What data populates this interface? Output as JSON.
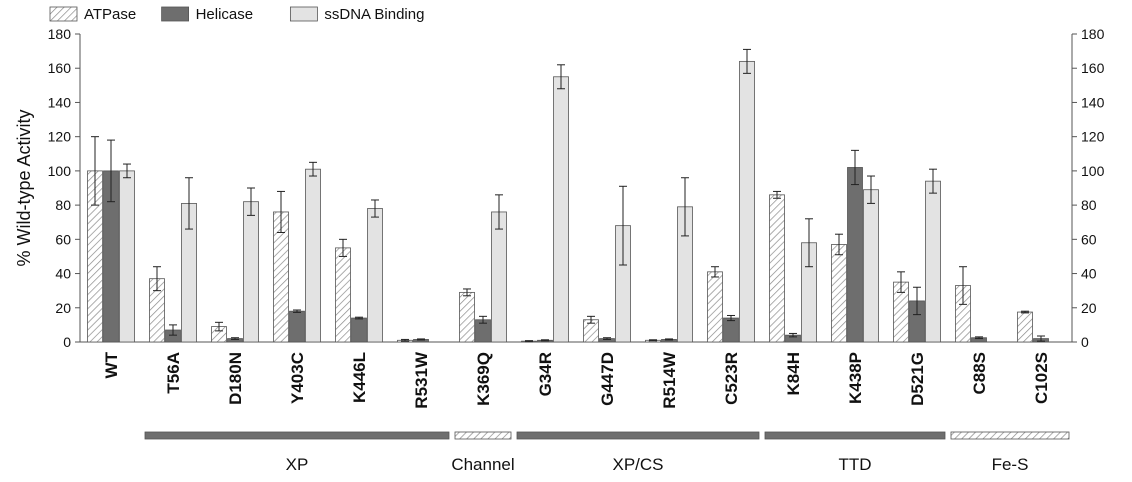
{
  "chart_data": {
    "type": "bar",
    "ylabel": "% Wild-type Activity",
    "ylim": [
      0,
      180
    ],
    "yticks": [
      0,
      20,
      40,
      60,
      80,
      100,
      120,
      140,
      160,
      180
    ],
    "y2ticks": [
      0,
      20,
      40,
      60,
      80,
      100,
      120,
      140,
      160,
      180
    ],
    "legend_position": "top-left",
    "categories": [
      "WT",
      "T56A",
      "D180N",
      "Y403C",
      "K446L",
      "R531W",
      "K369Q",
      "G34R",
      "G447D",
      "R514W",
      "C523R",
      "K84H",
      "K438P",
      "D521G",
      "C88S",
      "C102S"
    ],
    "series": [
      {
        "name": "ATPase",
        "pattern": "hatched",
        "values": [
          100,
          37,
          9,
          76,
          55,
          1,
          29,
          0.5,
          13,
          1,
          41,
          86,
          57,
          35,
          33,
          17.5
        ],
        "errors": [
          20,
          7,
          2.5,
          12,
          5,
          0.5,
          2,
          0.3,
          2,
          0.3,
          3,
          2,
          6,
          6,
          11,
          0.5
        ]
      },
      {
        "name": "Helicase",
        "pattern": "solid",
        "color": "#6e6e6e",
        "values": [
          100,
          7,
          2,
          18,
          14,
          1.5,
          13,
          1,
          2,
          1.5,
          14,
          4,
          102,
          24,
          2.5,
          2
        ],
        "errors": [
          18,
          3,
          0.5,
          0.7,
          0.5,
          0.3,
          2,
          0.3,
          0.5,
          0.3,
          1.5,
          1,
          10,
          8,
          0.5,
          1.5
        ]
      },
      {
        "name": "ssDNA Binding",
        "pattern": "solid",
        "color": "#e3e3e3",
        "values": [
          100,
          81,
          82,
          101,
          78,
          0,
          76,
          155,
          68,
          79,
          164,
          58,
          89,
          94,
          0,
          0
        ],
        "errors": [
          4,
          15,
          8,
          4,
          5,
          0,
          10,
          7,
          23,
          17,
          7,
          14,
          8,
          7,
          0,
          0
        ]
      }
    ],
    "groups": [
      {
        "label": "XP",
        "from": 1,
        "to": 5,
        "style": "solid"
      },
      {
        "label": "Channel",
        "from": 6,
        "to": 6,
        "style": "hatched"
      },
      {
        "label": "XP/CS",
        "from": 7,
        "to": 10,
        "style": "solid"
      },
      {
        "label": "TTD",
        "from": 11,
        "to": 13,
        "style": "solid"
      },
      {
        "label": "Fe-S",
        "from": 14,
        "to": 15,
        "style": "hatched"
      }
    ]
  }
}
